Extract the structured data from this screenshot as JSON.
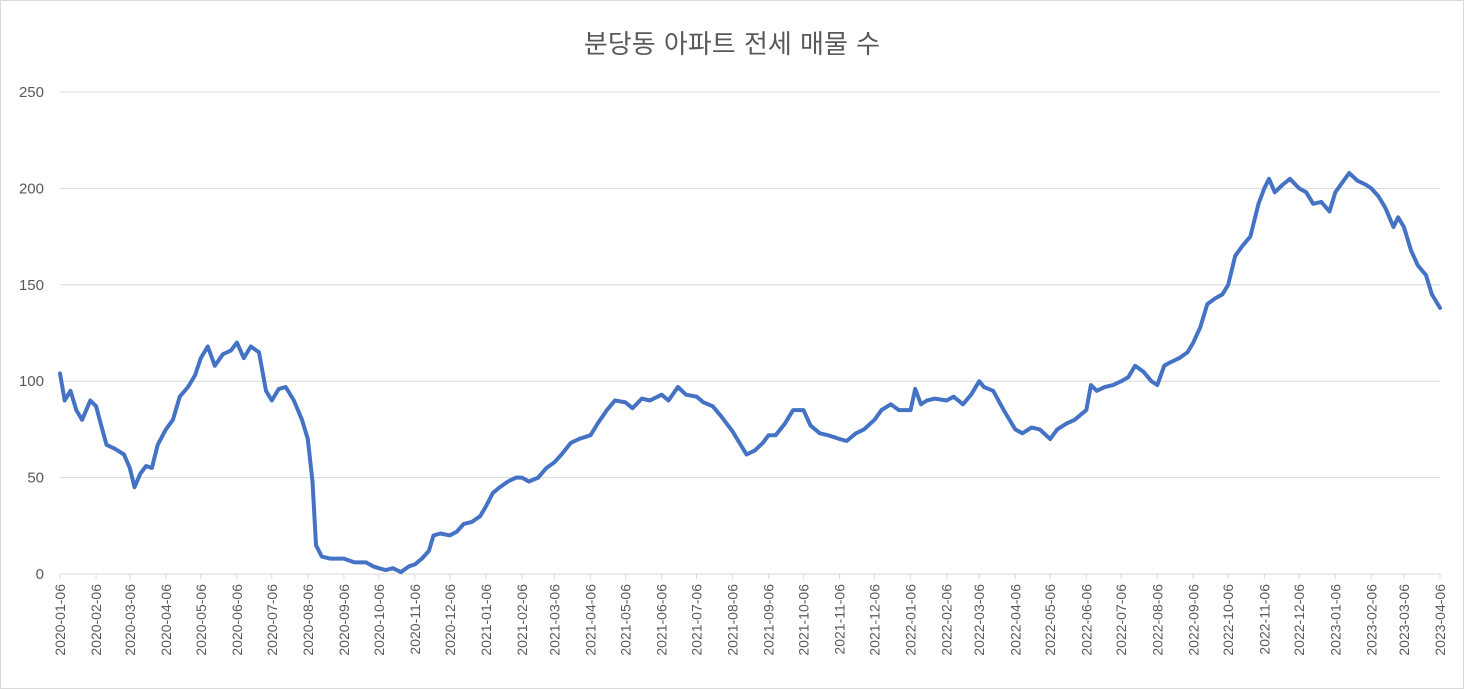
{
  "chart_data": {
    "type": "line",
    "title": "분당동 아파트 전세 매물 수",
    "xlabel": "",
    "ylabel": "",
    "ylim": [
      0,
      250
    ],
    "yticks": [
      0,
      50,
      100,
      150,
      200,
      250
    ],
    "grid": "horizontal",
    "legend": "none",
    "x_tick_labels": [
      "2020-01-06",
      "2020-02-06",
      "2020-03-06",
      "2020-04-06",
      "2020-05-06",
      "2020-06-06",
      "2020-07-06",
      "2020-08-06",
      "2020-09-06",
      "2020-10-06",
      "2020-11-06",
      "2020-12-06",
      "2021-01-06",
      "2021-02-06",
      "2021-03-06",
      "2021-04-06",
      "2021-05-06",
      "2021-06-06",
      "2021-07-06",
      "2021-08-06",
      "2021-09-06",
      "2021-10-06",
      "2021-11-06",
      "2021-12-06",
      "2022-01-06",
      "2022-02-06",
      "2022-03-06",
      "2022-04-06",
      "2022-05-06",
      "2022-06-06",
      "2022-07-06",
      "2022-08-06",
      "2022-09-06",
      "2022-10-06",
      "2022-11-06",
      "2022-12-06",
      "2023-01-06",
      "2023-02-06",
      "2023-03-06",
      "2023-04-06"
    ],
    "colors": {
      "line": "#4472c4",
      "grid": "#d9d9d9",
      "text": "#595959"
    },
    "series": [
      {
        "values": [
          [
            "2020-01-06",
            104
          ],
          [
            "2020-01-10",
            90
          ],
          [
            "2020-01-15",
            95
          ],
          [
            "2020-01-20",
            85
          ],
          [
            "2020-01-25",
            80
          ],
          [
            "2020-02-01",
            90
          ],
          [
            "2020-02-06",
            87
          ],
          [
            "2020-02-10",
            78
          ],
          [
            "2020-02-15",
            67
          ],
          [
            "2020-02-22",
            65
          ],
          [
            "2020-03-01",
            62
          ],
          [
            "2020-03-06",
            55
          ],
          [
            "2020-03-10",
            45
          ],
          [
            "2020-03-15",
            52
          ],
          [
            "2020-03-20",
            56
          ],
          [
            "2020-03-25",
            55
          ],
          [
            "2020-03-30",
            67
          ],
          [
            "2020-04-06",
            75
          ],
          [
            "2020-04-12",
            80
          ],
          [
            "2020-04-18",
            92
          ],
          [
            "2020-04-25",
            97
          ],
          [
            "2020-05-01",
            103
          ],
          [
            "2020-05-06",
            112
          ],
          [
            "2020-05-12",
            118
          ],
          [
            "2020-05-18",
            108
          ],
          [
            "2020-05-25",
            114
          ],
          [
            "2020-06-01",
            116
          ],
          [
            "2020-06-06",
            120
          ],
          [
            "2020-06-12",
            112
          ],
          [
            "2020-06-18",
            118
          ],
          [
            "2020-06-25",
            115
          ],
          [
            "2020-07-01",
            95
          ],
          [
            "2020-07-06",
            90
          ],
          [
            "2020-07-12",
            96
          ],
          [
            "2020-07-18",
            97
          ],
          [
            "2020-07-25",
            90
          ],
          [
            "2020-08-01",
            80
          ],
          [
            "2020-08-06",
            70
          ],
          [
            "2020-08-10",
            48
          ],
          [
            "2020-08-13",
            15
          ],
          [
            "2020-08-18",
            9
          ],
          [
            "2020-08-25",
            8
          ],
          [
            "2020-09-01",
            8
          ],
          [
            "2020-09-06",
            8
          ],
          [
            "2020-09-15",
            6
          ],
          [
            "2020-09-25",
            6
          ],
          [
            "2020-10-01",
            4
          ],
          [
            "2020-10-06",
            3
          ],
          [
            "2020-10-12",
            2
          ],
          [
            "2020-10-18",
            3
          ],
          [
            "2020-10-25",
            1
          ],
          [
            "2020-11-01",
            4
          ],
          [
            "2020-11-06",
            5
          ],
          [
            "2020-11-12",
            8
          ],
          [
            "2020-11-18",
            12
          ],
          [
            "2020-11-22",
            20
          ],
          [
            "2020-11-28",
            21
          ],
          [
            "2020-12-06",
            20
          ],
          [
            "2020-12-12",
            22
          ],
          [
            "2020-12-18",
            26
          ],
          [
            "2020-12-25",
            27
          ],
          [
            "2021-01-01",
            30
          ],
          [
            "2021-01-06",
            35
          ],
          [
            "2021-01-12",
            42
          ],
          [
            "2021-01-18",
            45
          ],
          [
            "2021-01-25",
            48
          ],
          [
            "2021-02-01",
            50
          ],
          [
            "2021-02-06",
            50
          ],
          [
            "2021-02-12",
            48
          ],
          [
            "2021-02-20",
            50
          ],
          [
            "2021-02-27",
            55
          ],
          [
            "2021-03-06",
            58
          ],
          [
            "2021-03-12",
            62
          ],
          [
            "2021-03-20",
            68
          ],
          [
            "2021-03-27",
            70
          ],
          [
            "2021-04-06",
            72
          ],
          [
            "2021-04-12",
            78
          ],
          [
            "2021-04-20",
            85
          ],
          [
            "2021-04-27",
            90
          ],
          [
            "2021-05-06",
            89
          ],
          [
            "2021-05-12",
            86
          ],
          [
            "2021-05-20",
            91
          ],
          [
            "2021-05-27",
            90
          ],
          [
            "2021-06-06",
            93
          ],
          [
            "2021-06-12",
            90
          ],
          [
            "2021-06-20",
            97
          ],
          [
            "2021-06-27",
            93
          ],
          [
            "2021-07-06",
            92
          ],
          [
            "2021-07-12",
            89
          ],
          [
            "2021-07-20",
            87
          ],
          [
            "2021-07-27",
            82
          ],
          [
            "2021-08-06",
            74
          ],
          [
            "2021-08-12",
            68
          ],
          [
            "2021-08-18",
            62
          ],
          [
            "2021-08-25",
            64
          ],
          [
            "2021-09-01",
            68
          ],
          [
            "2021-09-06",
            72
          ],
          [
            "2021-09-12",
            72
          ],
          [
            "2021-09-20",
            78
          ],
          [
            "2021-09-27",
            85
          ],
          [
            "2021-10-06",
            85
          ],
          [
            "2021-10-12",
            77
          ],
          [
            "2021-10-20",
            73
          ],
          [
            "2021-10-27",
            72
          ],
          [
            "2021-11-06",
            70
          ],
          [
            "2021-11-12",
            69
          ],
          [
            "2021-11-20",
            73
          ],
          [
            "2021-11-27",
            75
          ],
          [
            "2021-12-06",
            80
          ],
          [
            "2021-12-12",
            85
          ],
          [
            "2021-12-20",
            88
          ],
          [
            "2021-12-27",
            85
          ],
          [
            "2022-01-06",
            85
          ],
          [
            "2022-01-10",
            96
          ],
          [
            "2022-01-15",
            88
          ],
          [
            "2022-01-20",
            90
          ],
          [
            "2022-01-27",
            91
          ],
          [
            "2022-02-06",
            90
          ],
          [
            "2022-02-12",
            92
          ],
          [
            "2022-02-20",
            88
          ],
          [
            "2022-02-27",
            93
          ],
          [
            "2022-03-06",
            100
          ],
          [
            "2022-03-10",
            97
          ],
          [
            "2022-03-18",
            95
          ],
          [
            "2022-03-27",
            85
          ],
          [
            "2022-04-06",
            75
          ],
          [
            "2022-04-12",
            73
          ],
          [
            "2022-04-20",
            76
          ],
          [
            "2022-04-27",
            75
          ],
          [
            "2022-05-06",
            70
          ],
          [
            "2022-05-12",
            75
          ],
          [
            "2022-05-20",
            78
          ],
          [
            "2022-05-27",
            80
          ],
          [
            "2022-06-06",
            85
          ],
          [
            "2022-06-10",
            98
          ],
          [
            "2022-06-15",
            95
          ],
          [
            "2022-06-22",
            97
          ],
          [
            "2022-06-29",
            98
          ],
          [
            "2022-07-06",
            100
          ],
          [
            "2022-07-12",
            102
          ],
          [
            "2022-07-18",
            108
          ],
          [
            "2022-07-25",
            105
          ],
          [
            "2022-08-01",
            100
          ],
          [
            "2022-08-06",
            98
          ],
          [
            "2022-08-12",
            108
          ],
          [
            "2022-08-18",
            110
          ],
          [
            "2022-08-25",
            112
          ],
          [
            "2022-09-01",
            115
          ],
          [
            "2022-09-06",
            120
          ],
          [
            "2022-09-12",
            128
          ],
          [
            "2022-09-18",
            140
          ],
          [
            "2022-09-25",
            143
          ],
          [
            "2022-10-01",
            145
          ],
          [
            "2022-10-06",
            150
          ],
          [
            "2022-10-12",
            165
          ],
          [
            "2022-10-18",
            170
          ],
          [
            "2022-10-25",
            175
          ],
          [
            "2022-11-01",
            192
          ],
          [
            "2022-11-06",
            200
          ],
          [
            "2022-11-10",
            205
          ],
          [
            "2022-11-15",
            198
          ],
          [
            "2022-11-22",
            202
          ],
          [
            "2022-11-28",
            205
          ],
          [
            "2022-12-06",
            200
          ],
          [
            "2022-12-12",
            198
          ],
          [
            "2022-12-18",
            192
          ],
          [
            "2022-12-25",
            193
          ],
          [
            "2023-01-01",
            188
          ],
          [
            "2023-01-06",
            198
          ],
          [
            "2023-01-12",
            203
          ],
          [
            "2023-01-18",
            208
          ],
          [
            "2023-01-25",
            204
          ],
          [
            "2023-02-01",
            202
          ],
          [
            "2023-02-06",
            200
          ],
          [
            "2023-02-12",
            196
          ],
          [
            "2023-02-18",
            190
          ],
          [
            "2023-02-25",
            180
          ],
          [
            "2023-03-01",
            185
          ],
          [
            "2023-03-06",
            180
          ],
          [
            "2023-03-12",
            168
          ],
          [
            "2023-03-18",
            160
          ],
          [
            "2023-03-25",
            155
          ],
          [
            "2023-03-30",
            145
          ],
          [
            "2023-04-06",
            138
          ]
        ]
      }
    ]
  }
}
